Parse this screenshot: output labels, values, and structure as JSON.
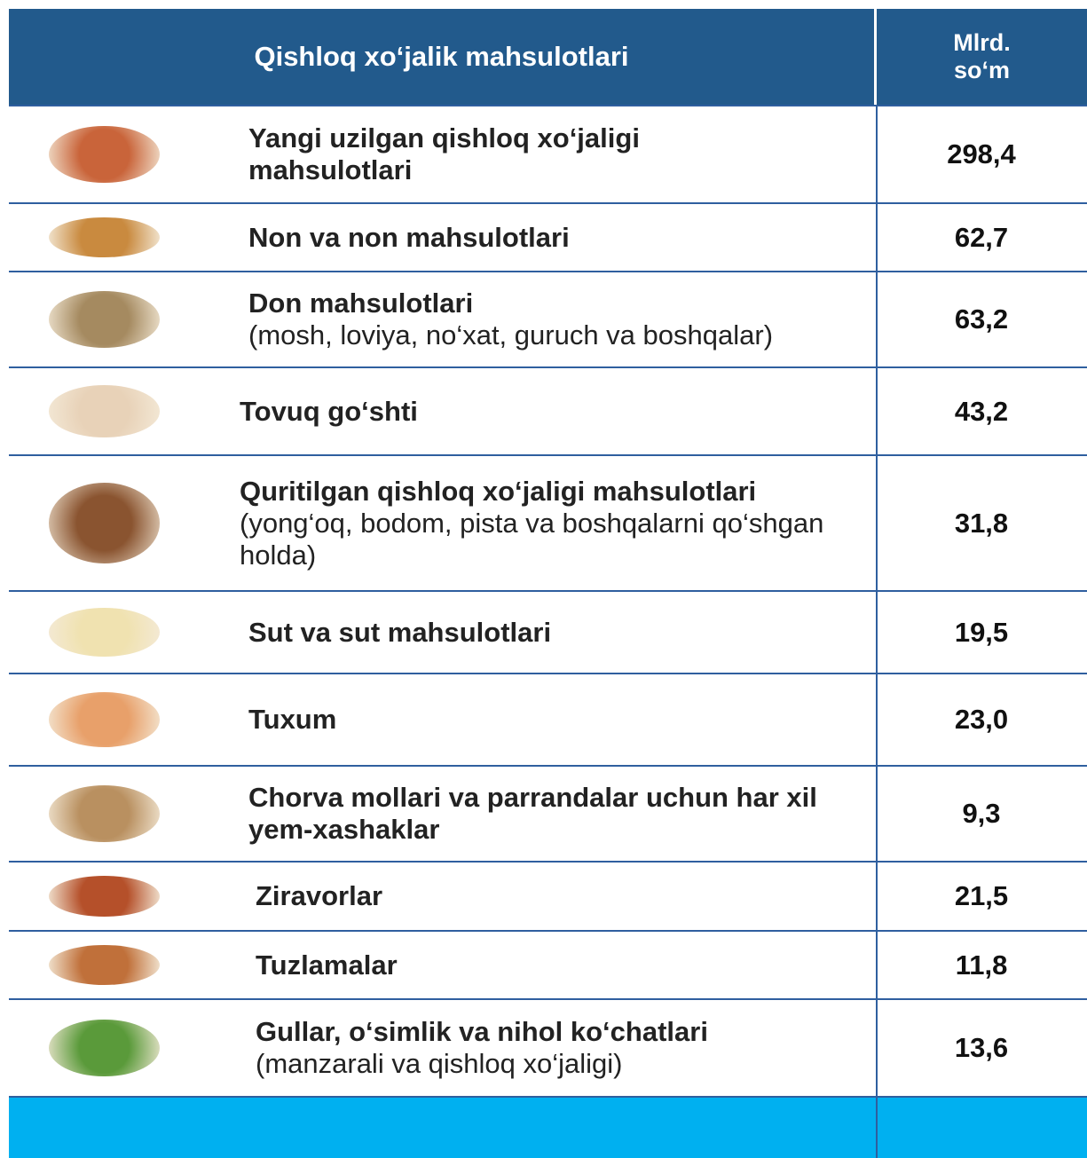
{
  "header": {
    "title": "Qishloq xo‘jalik mahsulotlari",
    "unit": "Mlrd. so‘m"
  },
  "table": {
    "rows": [
      {
        "title": "Yangi uzilgan qishloq xo‘jaligi mahsulotlari",
        "value": "298,4"
      },
      {
        "title": "Non va non mahsulotlari",
        "value": "62,7"
      },
      {
        "title": "Don mahsulotlari",
        "note": "(mosh, loviya, no‘xat, guruch va boshqalar)",
        "value": "63,2"
      },
      {
        "title": "Tovuq go‘shti",
        "value": "43,2"
      },
      {
        "title": "Quritilgan qishloq xo‘jaligi mahsulotlari",
        "note": "(yong‘oq, bodom, pista va boshqalarni qo‘shgan holda)",
        "value": "31,8"
      },
      {
        "title": "Sut va sut mahsulotlari",
        "value": "19,5"
      },
      {
        "title": "Tuxum",
        "value": "23,0"
      },
      {
        "title": "Chorva mollari va parrandalar uchun har xil yem-xashaklar",
        "value": "9,3"
      },
      {
        "title": "Ziravorlar",
        "value": "21,5"
      },
      {
        "title": "Tuzlamalar",
        "value": "11,8"
      },
      {
        "title": "Gullar, o‘simlik va nihol ko‘chatlari",
        "note": "(manzarali va qishloq xo‘jaligi)",
        "value": "13,6"
      }
    ]
  }
}
